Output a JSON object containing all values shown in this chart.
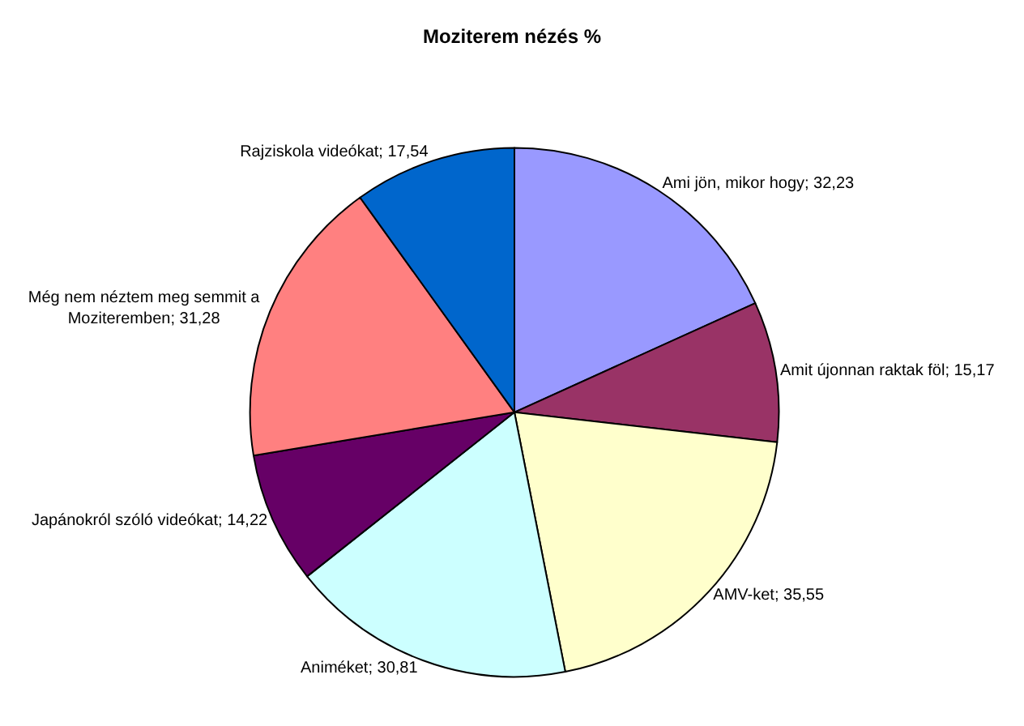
{
  "chart_data": {
    "type": "pie",
    "title": "Moziterem nézés %",
    "categories": [
      "Ami jön, mikor hogy",
      "Amit újonnan raktak föl",
      "AMV-ket",
      "Animéket",
      "Japánokról szóló videókat",
      "Még nem néztem meg semmit a Moziteremben",
      "Rajziskola videókat"
    ],
    "values": [
      32.23,
      15.17,
      35.55,
      30.81,
      14.22,
      31.28,
      17.54
    ],
    "value_labels": [
      "32,23",
      "15,17",
      "35,55",
      "30,81",
      "14,22",
      "31,28",
      "17,54"
    ],
    "colors": [
      "#9999ff",
      "#993366",
      "#ffffcc",
      "#ccffff",
      "#660066",
      "#ff8080",
      "#0066cc"
    ],
    "legend": false
  }
}
